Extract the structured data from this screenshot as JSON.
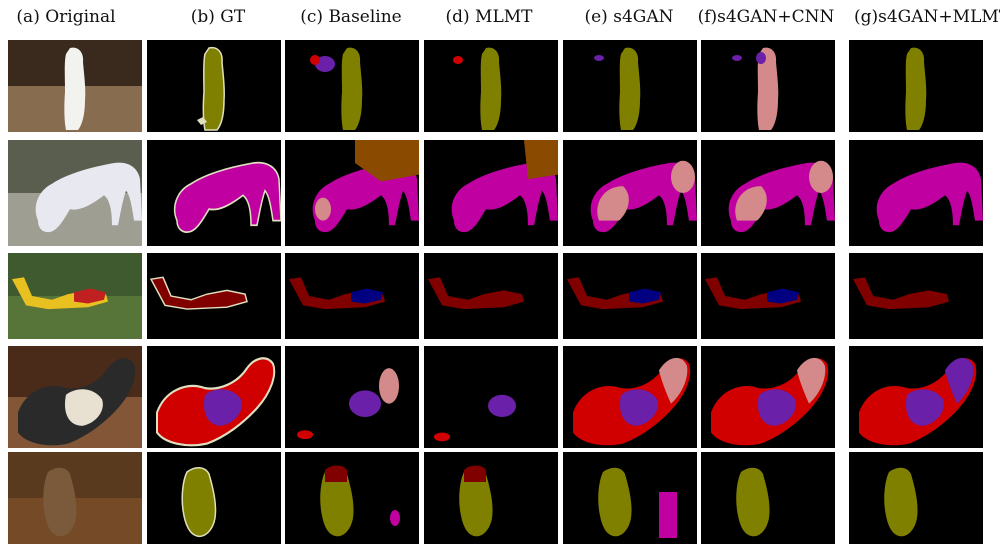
{
  "column_headers": [
    "(a) Original",
    "(b) GT",
    "(c) Baseline",
    "(d) MLMT",
    "(e) s4GAN",
    "(f)s4GAN+CNN",
    "(g)s4GAN+MLMT"
  ],
  "colors": {
    "background": "#000000",
    "olive": "#808000",
    "magenta": "#c000a0",
    "pink": "#d48a8a",
    "brown": "#8a4a00",
    "maroon": "#800000",
    "blue": "#000080",
    "red": "#d00000",
    "purple": "#6a20a8",
    "outline": "#e0e0c0"
  },
  "rows": [
    {
      "subject": "cockatoo"
    },
    {
      "subject": "horse"
    },
    {
      "subject": "airplane"
    },
    {
      "subject": "dog-on-chair"
    },
    {
      "subject": "owl"
    }
  ]
}
